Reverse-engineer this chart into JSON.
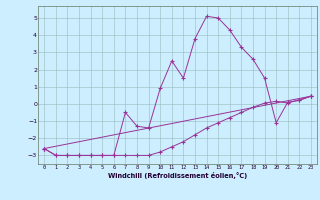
{
  "xlabel": "Windchill (Refroidissement éolien,°C)",
  "background_color": "#cceeff",
  "grid_color": "#99bbbb",
  "line_color": "#993399",
  "xlim": [
    -0.5,
    23.5
  ],
  "ylim": [
    -3.5,
    5.7
  ],
  "yticks": [
    -3,
    -2,
    -1,
    0,
    1,
    2,
    3,
    4,
    5
  ],
  "xticks": [
    0,
    1,
    2,
    3,
    4,
    5,
    6,
    7,
    8,
    9,
    10,
    11,
    12,
    13,
    14,
    15,
    16,
    17,
    18,
    19,
    20,
    21,
    22,
    23
  ],
  "line1_x": [
    0,
    1,
    2,
    3,
    4,
    5,
    6,
    7,
    8,
    9,
    10,
    11,
    12,
    13,
    14,
    15,
    16,
    17,
    18,
    19,
    20,
    21,
    22,
    23
  ],
  "line1_y": [
    -2.6,
    -3.0,
    -3.0,
    -3.0,
    -3.0,
    -3.0,
    -3.0,
    -3.0,
    -3.0,
    -3.0,
    -2.8,
    -2.5,
    -2.2,
    -1.8,
    -1.4,
    -1.1,
    -0.8,
    -0.5,
    -0.2,
    0.05,
    0.15,
    0.05,
    0.25,
    0.45
  ],
  "line2_x": [
    0,
    1,
    2,
    3,
    4,
    5,
    6,
    7,
    8,
    9,
    10,
    11,
    12,
    13,
    14,
    15,
    16,
    17,
    18,
    19,
    20,
    21,
    22,
    23
  ],
  "line2_y": [
    -2.6,
    -3.0,
    -3.0,
    -3.0,
    -3.0,
    -3.0,
    -3.0,
    -0.5,
    -1.3,
    -1.4,
    0.9,
    2.5,
    1.5,
    3.8,
    5.1,
    5.0,
    4.3,
    3.3,
    2.6,
    1.5,
    -1.1,
    0.1,
    0.2,
    0.45
  ],
  "line3_x": [
    0,
    23
  ],
  "line3_y": [
    -2.6,
    0.45
  ]
}
